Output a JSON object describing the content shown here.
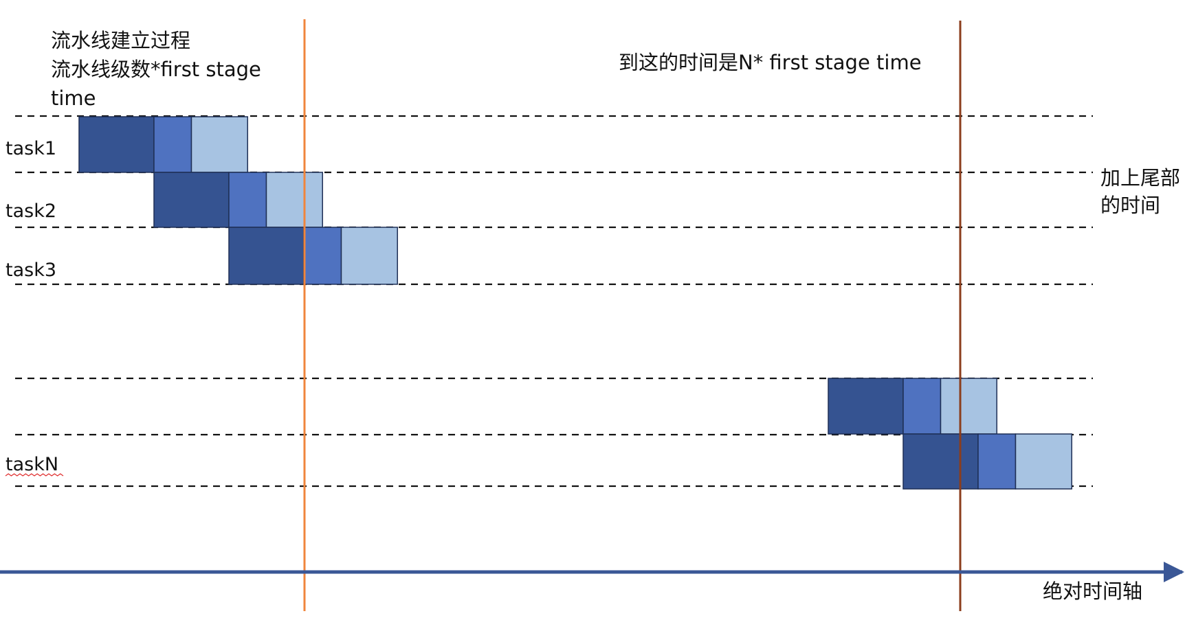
{
  "diagram": {
    "annotations": {
      "setup_title": "流水线建立过程",
      "setup_formula_line1": "流水线级数*first stage",
      "setup_formula_line2": "time",
      "checkpoint": "到这的时间是N* first stage time",
      "tail_line1": "加上尾部",
      "tail_line2": "的时间",
      "time_axis": "绝对时间轴"
    },
    "tasks": [
      {
        "label": "task1",
        "start_slot": 0
      },
      {
        "label": "task2",
        "start_slot": 1
      },
      {
        "label": "task3",
        "start_slot": 2
      },
      {
        "label": "",
        "start_slot": 10
      },
      {
        "label": "taskN",
        "start_slot": 11
      }
    ],
    "stages": [
      {
        "span": 2,
        "color": "#355391"
      },
      {
        "span": 1,
        "color": "#4f72c0"
      },
      {
        "span": 1.5,
        "color": "#a7c3e2"
      }
    ],
    "colors": {
      "pipeline_end_marker": "#f0853c",
      "checkpoint_marker": "#8b3d1c",
      "time_axis": "#3a5796",
      "row_separator": "#111111",
      "spellcheck_underline": "#e03030"
    }
  }
}
